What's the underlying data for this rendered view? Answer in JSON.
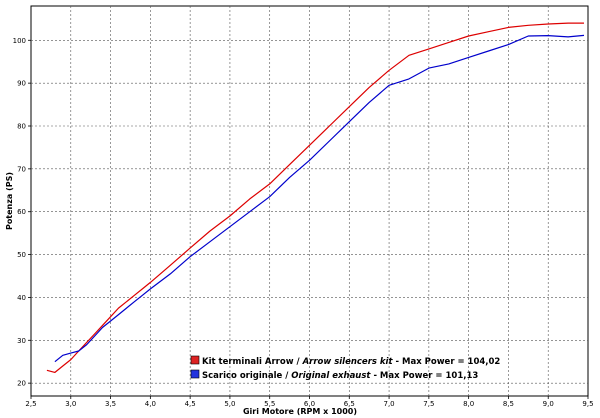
{
  "chart_data": {
    "type": "line",
    "title": "",
    "xlabel": "Giri Motore (RPM x 1000)",
    "ylabel": "Potenza (PS)",
    "xlim": [
      2.5,
      9.5
    ],
    "ylim": [
      17,
      108
    ],
    "xticks": [
      "2,5",
      "3,0",
      "3,5",
      "4,0",
      "4,5",
      "5,0",
      "5,5",
      "6,0",
      "6,5",
      "7,0",
      "7,5",
      "8,0",
      "8,5",
      "9,0",
      "9,5"
    ],
    "yticks": [
      "20",
      "30",
      "40",
      "50",
      "60",
      "70",
      "80",
      "90",
      "100"
    ],
    "grid": true,
    "legend_position": "bottom-right",
    "series": [
      {
        "name": "Kit terminali Arrow / Arrow silencers kit - Max Power = 104,02",
        "color": "#dd0000",
        "legend": {
          "normal": "Kit terminali Arrow / ",
          "italic": "Arrow silencers kit",
          "suffix": " - Max Power = 104,02"
        },
        "x": [
          2.7,
          2.8,
          2.9,
          3.0,
          3.1,
          3.2,
          3.3,
          3.4,
          3.5,
          3.6,
          3.7,
          3.8,
          3.9,
          4.0,
          4.25,
          4.5,
          4.75,
          5.0,
          5.25,
          5.5,
          5.75,
          6.0,
          6.25,
          6.5,
          6.75,
          7.0,
          7.25,
          7.5,
          7.75,
          8.0,
          8.25,
          8.5,
          8.75,
          9.0,
          9.25,
          9.45
        ],
        "y": [
          23,
          22.5,
          24,
          25.5,
          27.5,
          29.5,
          31.5,
          33.5,
          35.5,
          37.5,
          39,
          40.5,
          42,
          43.5,
          47.5,
          51.5,
          55.5,
          59,
          63,
          66.5,
          71,
          75.5,
          80,
          84.5,
          89,
          93,
          96.5,
          98,
          99.5,
          101,
          102,
          103,
          103.5,
          103.8,
          104,
          104.02
        ]
      },
      {
        "name": "Scarico originale / Original exhaust - Max Power = 101,13",
        "color": "#0000cc",
        "legend": {
          "normal": "Scarico originale / ",
          "italic": "Original exhaust",
          "suffix": " - Max Power = 101,13"
        },
        "x": [
          2.8,
          2.9,
          3.0,
          3.1,
          3.2,
          3.3,
          3.4,
          3.5,
          3.6,
          3.7,
          3.8,
          3.9,
          4.0,
          4.25,
          4.5,
          4.75,
          5.0,
          5.25,
          5.5,
          5.75,
          6.0,
          6.25,
          6.5,
          6.75,
          7.0,
          7.25,
          7.5,
          7.75,
          8.0,
          8.25,
          8.5,
          8.75,
          9.0,
          9.25,
          9.45
        ],
        "y": [
          25,
          26.5,
          27,
          27.5,
          29,
          31,
          33,
          34.5,
          36,
          37.5,
          39,
          40.5,
          42,
          45.5,
          49.5,
          53,
          56.5,
          60,
          63.5,
          68,
          72,
          76.5,
          81,
          85.5,
          89.5,
          91,
          93.5,
          94.5,
          96,
          97.5,
          99,
          101,
          101.1,
          100.8,
          101.13
        ]
      }
    ]
  }
}
